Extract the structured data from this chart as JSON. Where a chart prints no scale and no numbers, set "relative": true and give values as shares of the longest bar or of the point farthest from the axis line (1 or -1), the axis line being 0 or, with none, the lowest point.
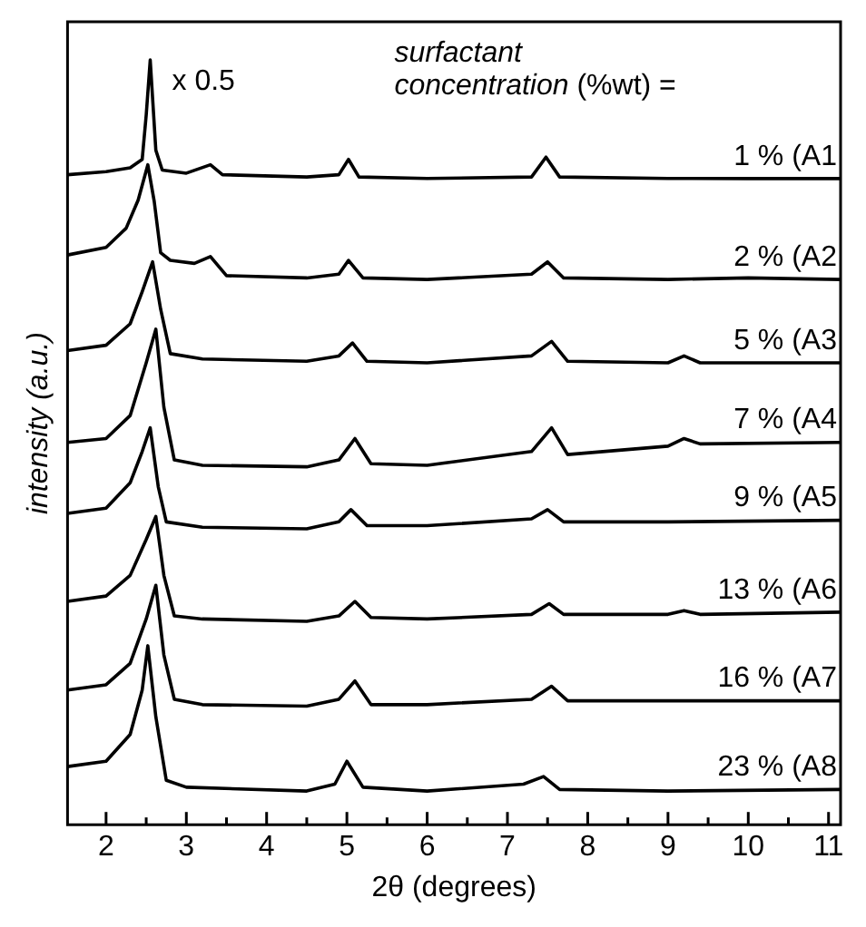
{
  "chart_data": {
    "type": "line",
    "relative": true,
    "xlabel": "2θ (degrees)",
    "ylabel": "intensity (a.u.)",
    "legend_title": "surfactant concentration (%wt) =",
    "xlim": [
      1.52,
      11.15
    ],
    "xticks": [
      2,
      {
        "value": 2.5,
        "label": null
      },
      3,
      {
        "value": 3.5,
        "label": null
      },
      4,
      {
        "value": 4.5,
        "label": null
      },
      5,
      {
        "value": 5.5,
        "label": null
      },
      6,
      {
        "value": 6.5,
        "label": null
      },
      7,
      {
        "value": 7.5,
        "label": null
      },
      8,
      {
        "value": 8.5,
        "label": null
      },
      9,
      {
        "value": 9.5,
        "label": null
      },
      10,
      {
        "value": 10.5,
        "label": null
      },
      11
    ],
    "grid": false,
    "legend": false,
    "marker": "none",
    "line_style": "solid",
    "annotations": [
      {
        "text": "x 0.5",
        "x": 2.55,
        "y": 1
      }
    ],
    "series": [
      {
        "name": "1 % (A1",
        "color": "#000000",
        "x": [
          1.52,
          2.0,
          2.3,
          2.45,
          2.5,
          2.55,
          2.62,
          2.7,
          3.0,
          3.3,
          3.45,
          4.5,
          4.9,
          5.02,
          5.15,
          6.0,
          7.3,
          7.48,
          7.65,
          9.0,
          10,
          11.15
        ],
        "values": [
          0.85,
          0.854,
          0.859,
          0.87,
          0.928,
          1,
          0.882,
          0.856,
          0.852,
          0.863,
          0.85,
          0.847,
          0.85,
          0.87,
          0.847,
          0.845,
          0.847,
          0.873,
          0.847,
          0.845,
          0.845,
          0.845
        ]
      },
      {
        "name": "2 % (A2",
        "color": "#000000",
        "x": [
          1.52,
          2.0,
          2.25,
          2.4,
          2.52,
          2.6,
          2.68,
          2.8,
          3.1,
          3.3,
          3.5,
          4.5,
          4.9,
          5.02,
          5.2,
          6,
          7.3,
          7.5,
          7.7,
          9,
          10,
          11.15
        ],
        "values": [
          0.745,
          0.755,
          0.78,
          0.817,
          0.863,
          0.815,
          0.748,
          0.738,
          0.734,
          0.743,
          0.718,
          0.715,
          0.72,
          0.738,
          0.715,
          0.713,
          0.72,
          0.736,
          0.715,
          0.713,
          0.715,
          0.713
        ]
      },
      {
        "name": "5 % (A3",
        "color": "#000000",
        "x": [
          1.52,
          2.0,
          2.3,
          2.45,
          2.58,
          2.68,
          2.8,
          3.2,
          4.5,
          4.9,
          5.07,
          5.25,
          6,
          7.3,
          7.55,
          7.75,
          9,
          9.2,
          9.4,
          11.15
        ],
        "values": [
          0.62,
          0.627,
          0.655,
          0.697,
          0.736,
          0.674,
          0.616,
          0.609,
          0.606,
          0.613,
          0.63,
          0.606,
          0.604,
          0.613,
          0.632,
          0.606,
          0.604,
          0.613,
          0.604,
          0.604
        ]
      },
      {
        "name": "7 % (A4",
        "color": "#000000",
        "x": [
          1.52,
          2.0,
          2.3,
          2.5,
          2.62,
          2.72,
          2.85,
          3.2,
          4.5,
          4.9,
          5.1,
          5.3,
          6,
          7.3,
          7.55,
          7.75,
          9.0,
          9.2,
          9.4,
          11.15
        ],
        "values": [
          0.5,
          0.505,
          0.535,
          0.604,
          0.648,
          0.546,
          0.477,
          0.47,
          0.468,
          0.477,
          0.505,
          0.472,
          0.47,
          0.488,
          0.519,
          0.484,
          0.495,
          0.505,
          0.498,
          0.5
        ]
      },
      {
        "name": "9 % (A5",
        "color": "#000000",
        "x": [
          1.52,
          2.0,
          2.3,
          2.45,
          2.55,
          2.65,
          2.75,
          3.2,
          4.5,
          4.9,
          5.05,
          5.25,
          6,
          7.3,
          7.5,
          7.7,
          9,
          11.15
        ],
        "values": [
          0.407,
          0.414,
          0.447,
          0.488,
          0.519,
          0.442,
          0.396,
          0.389,
          0.387,
          0.396,
          0.412,
          0.391,
          0.391,
          0.4,
          0.412,
          0.396,
          0.396,
          0.398
        ]
      },
      {
        "name": "13 % (A6",
        "color": "#000000",
        "x": [
          1.52,
          2.0,
          2.3,
          2.5,
          2.62,
          2.72,
          2.85,
          3.2,
          4.5,
          4.9,
          5.1,
          5.3,
          6,
          7.3,
          7.52,
          7.7,
          9,
          9.2,
          9.4,
          11.15
        ],
        "values": [
          0.292,
          0.299,
          0.326,
          0.373,
          0.403,
          0.326,
          0.273,
          0.269,
          0.266,
          0.273,
          0.292,
          0.271,
          0.269,
          0.275,
          0.289,
          0.275,
          0.275,
          0.28,
          0.275,
          0.278
        ]
      },
      {
        "name": "16 % (A7",
        "color": "#000000",
        "x": [
          1.52,
          2.0,
          2.3,
          2.5,
          2.62,
          2.72,
          2.85,
          3.2,
          4.5,
          4.9,
          5.1,
          5.3,
          6,
          7.3,
          7.55,
          7.75,
          9,
          11.15
        ],
        "values": [
          0.176,
          0.183,
          0.211,
          0.269,
          0.313,
          0.222,
          0.164,
          0.157,
          0.155,
          0.164,
          0.188,
          0.157,
          0.157,
          0.164,
          0.181,
          0.162,
          0.162,
          0.162
        ]
      },
      {
        "name": "23 % (A8",
        "color": "#000000",
        "x": [
          1.52,
          2.0,
          2.3,
          2.45,
          2.52,
          2.62,
          2.75,
          3.0,
          4.5,
          4.85,
          5.0,
          5.2,
          6,
          7.2,
          7.45,
          7.65,
          9,
          11.15
        ],
        "values": [
          0.076,
          0.083,
          0.118,
          0.176,
          0.234,
          0.141,
          0.058,
          0.049,
          0.044,
          0.053,
          0.083,
          0.049,
          0.044,
          0.053,
          0.063,
          0.046,
          0.044,
          0.046
        ]
      }
    ]
  }
}
